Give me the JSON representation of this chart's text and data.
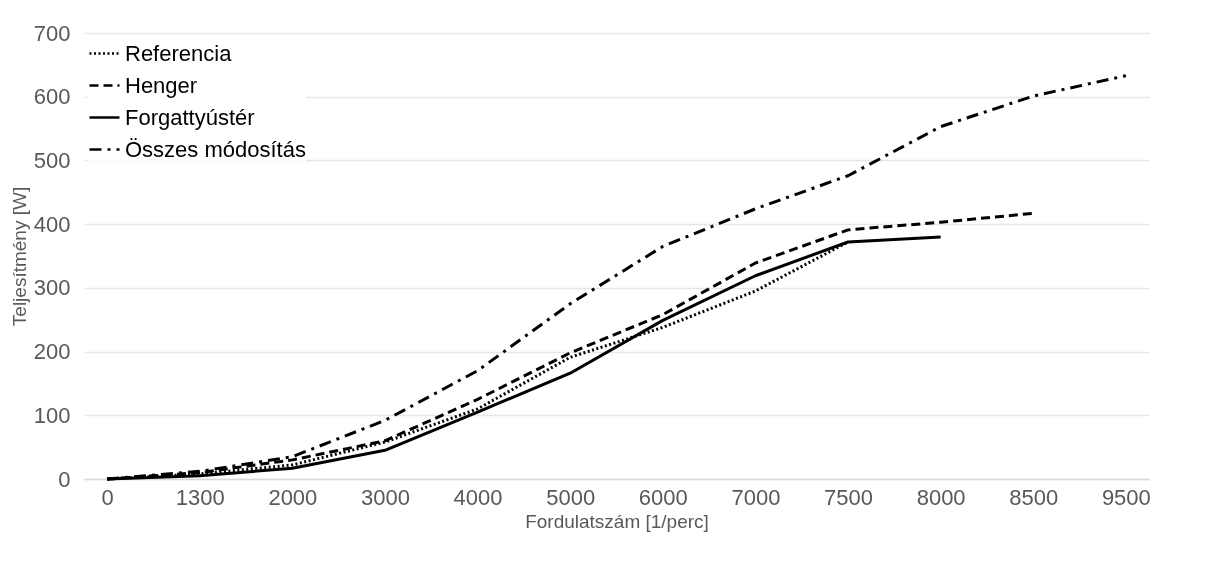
{
  "chart_data": {
    "type": "line",
    "xlabel": "Fordulatszám  [1/perc]",
    "ylabel": "Teljesítmény [W]",
    "categories": [
      "0",
      "1300",
      "2000",
      "3000",
      "4000",
      "5000",
      "6000",
      "7000",
      "7500",
      "8000",
      "8500",
      "9500"
    ],
    "ylim": [
      0,
      700
    ],
    "yticks": [
      0,
      100,
      200,
      300,
      400,
      500,
      600,
      700
    ],
    "grid": "y",
    "legend": "top left",
    "series": [
      {
        "name": "Referencia",
        "color": "#000000",
        "line_style": "dotted",
        "values": [
          0,
          8,
          22,
          58,
          110,
          191,
          238,
          295,
          372,
          null,
          null,
          null
        ]
      },
      {
        "name": "Henger",
        "color": "#000000",
        "line_style": "dashed",
        "values": [
          0,
          10,
          30,
          60,
          125,
          198,
          258,
          339,
          391,
          403,
          417,
          null
        ]
      },
      {
        "name": "Forgattyústér",
        "color": "#000000",
        "line_style": "solid",
        "values": [
          0,
          5,
          17,
          45,
          105,
          166,
          249,
          319,
          372,
          380,
          null,
          null
        ]
      },
      {
        "name": "Összes módosítás",
        "color": "#000000",
        "line_style": "dashdot",
        "values": [
          0,
          12,
          35,
          92,
          170,
          275,
          365,
          424,
          476,
          553,
          601,
          633
        ]
      }
    ]
  }
}
